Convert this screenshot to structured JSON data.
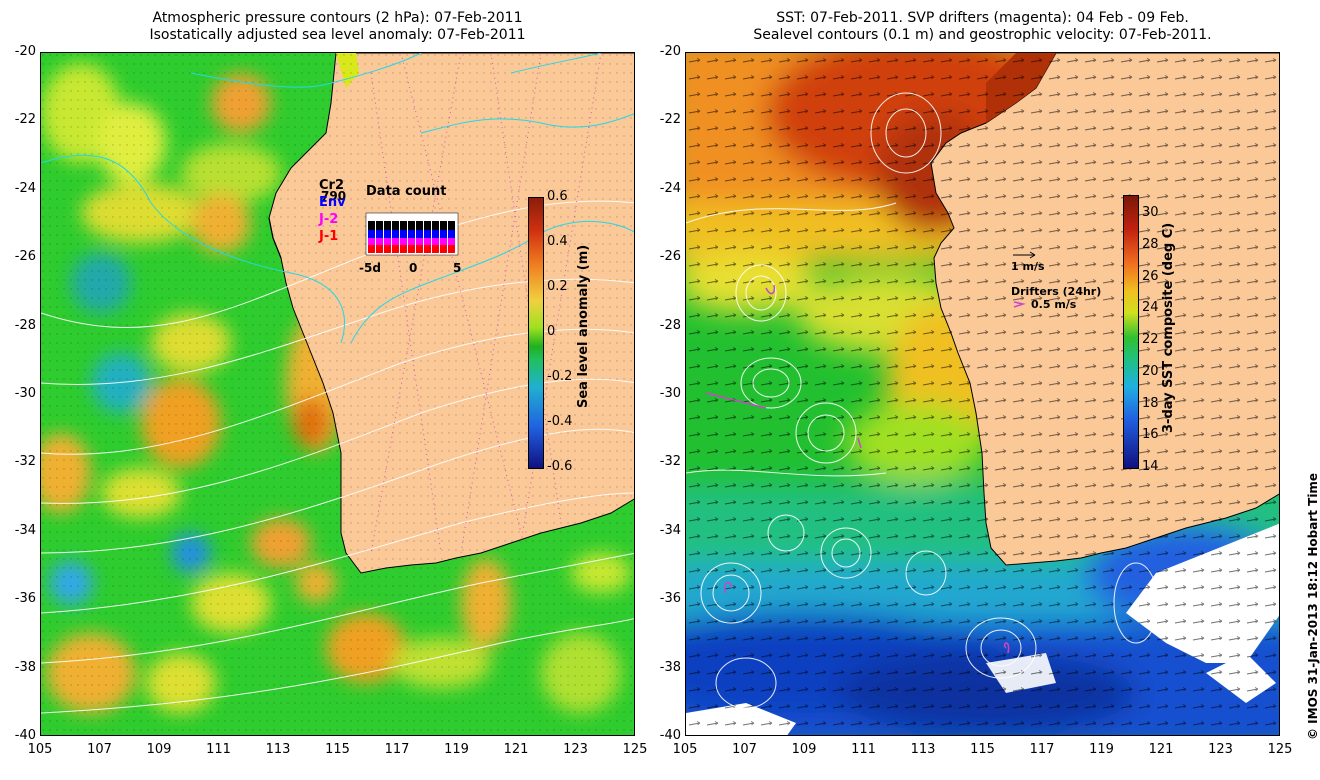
{
  "left": {
    "title_line1": "Atmospheric pressure contours (2 hPa): 07-Feb-2011",
    "title_line2": "Isostatically adjusted sea level anomaly: 07-Feb-2011",
    "colorbar_label": "Sea level anomaly (m)",
    "colorbar_ticks": [
      "0.6",
      "0.4",
      "0.2",
      "0",
      "-0.2",
      "-0.4",
      "-0.6"
    ],
    "satellites": [
      "Cr2",
      "Env",
      "J-2",
      "J-1"
    ],
    "satellite_colors": [
      "#000000",
      "#0000ff",
      "#ff00ff",
      "#ff0000"
    ],
    "count_value": "790",
    "data_count_title": "Data count",
    "data_count_ticks": [
      "-5d",
      "0",
      "5"
    ]
  },
  "right": {
    "title_line1": "SST: 07-Feb-2011. SVP drifters (magenta): 04 Feb - 09 Feb.",
    "title_line2": "Sealevel contours (0.1 m) and geostrophic velocity: 07-Feb-2011.",
    "colorbar_label": "3-day SST composite (deg C)",
    "colorbar_ticks": [
      "30",
      "28",
      "26",
      "24",
      "22",
      "20",
      "18",
      "16",
      "14"
    ],
    "vector_scale_label": "1 m/s",
    "drifters_label": "Drifters (24hr)",
    "drifter_scale_label": "0.5 m/s"
  },
  "axes": {
    "y_ticks": [
      "-20",
      "-22",
      "-24",
      "-26",
      "-28",
      "-30",
      "-32",
      "-34",
      "-36",
      "-38",
      "-40"
    ],
    "x_ticks": [
      "105",
      "107",
      "109",
      "111",
      "113",
      "115",
      "117",
      "119",
      "121",
      "123",
      "125"
    ]
  },
  "credit": "© IMOS 31-Jan-2013 18:12 Hobart Time",
  "colors": {
    "land": "#fbc898",
    "sla_green": "#22cc22",
    "white_cloud": "#ffffff"
  }
}
